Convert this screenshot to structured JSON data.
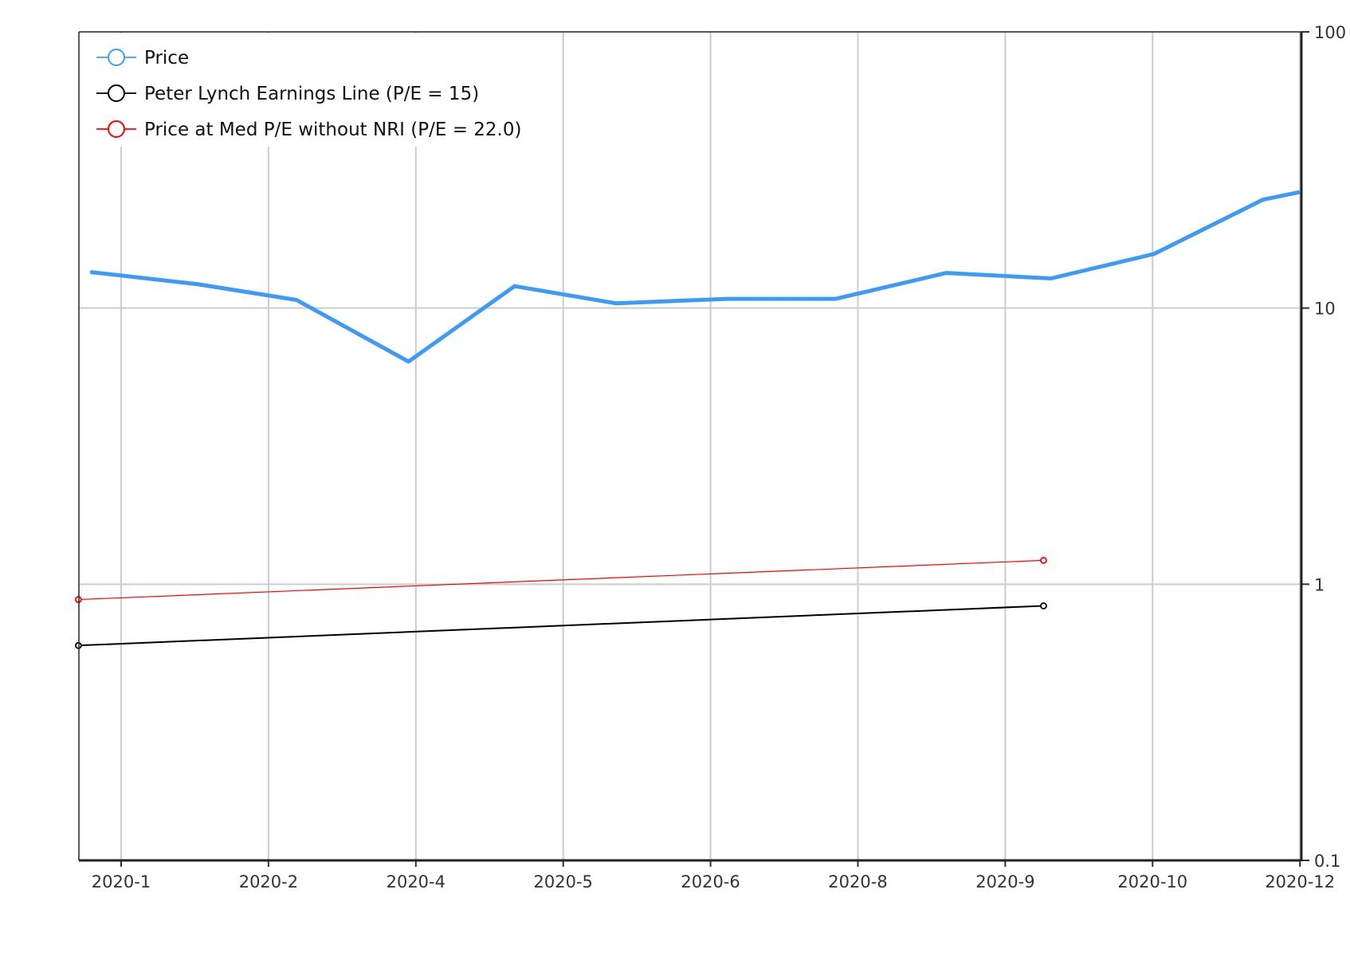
{
  "chart_data": {
    "type": "line",
    "title": "",
    "xlabel": "",
    "ylabel": "",
    "y_scale": "log",
    "ylim": [
      0.1,
      100
    ],
    "y_ticks": [
      "100",
      "10",
      "1",
      "0.1"
    ],
    "y_tick_values": [
      100,
      10,
      1,
      0.1
    ],
    "x_tick_labels": [
      "2020-1",
      "2020-2",
      "2020-4",
      "2020-5",
      "2020-6",
      "2020-8",
      "2020-9",
      "2020-10",
      "2020-12"
    ],
    "x_note": "x values are in units of tick index (0 = 2020-1, 8 = 2020-12)",
    "xlim": [
      -0.29,
      8.0
    ],
    "grid": true,
    "legend_position": "top-left",
    "series": [
      {
        "name": "Price",
        "color": "#3d9bf7",
        "width": 5,
        "markers": false,
        "x": [
          -0.21,
          0.52,
          1.19,
          1.95,
          2.67,
          3.36,
          4.12,
          4.85,
          5.6,
          6.31,
          7.01,
          7.75,
          8.0
        ],
        "y": [
          13.5,
          12.2,
          10.7,
          6.4,
          12.0,
          10.4,
          10.8,
          10.8,
          13.4,
          12.8,
          15.7,
          24.7,
          26.3
        ]
      },
      {
        "name": "Peter Lynch Earnings Line (P/E = 15)",
        "color": "#000000",
        "width": 2,
        "markers": true,
        "x": [
          -0.29,
          6.26
        ],
        "y": [
          0.6,
          0.835
        ]
      },
      {
        "name": "Price at Med P/E without NRI (P/E = 22.0)",
        "color": "#ff0000",
        "width": 1.2,
        "markers": true,
        "x": [
          -0.29,
          6.26
        ],
        "y": [
          0.88,
          1.22
        ]
      }
    ]
  }
}
